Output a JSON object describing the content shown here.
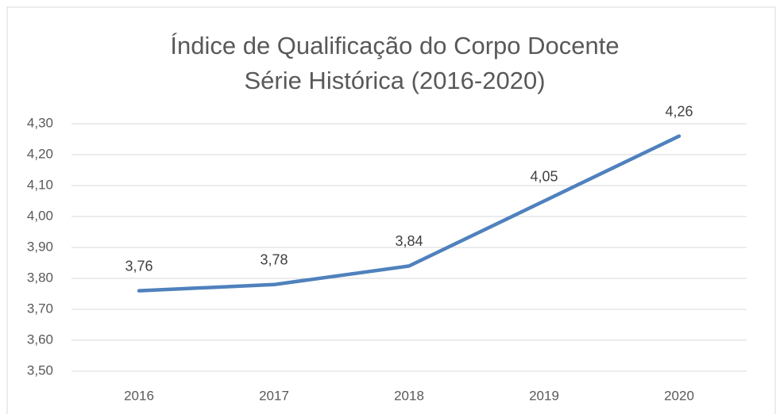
{
  "chart_data": {
    "type": "line",
    "title": "Índice de Qualificação do Corpo Docente",
    "subtitle": "Série Histórica (2016-2020)",
    "categories": [
      "2016",
      "2017",
      "2018",
      "2019",
      "2020"
    ],
    "series": [
      {
        "name": "Índice",
        "color": "#4f81bd",
        "values": [
          3.76,
          3.78,
          3.84,
          4.05,
          4.26
        ],
        "value_labels": [
          "3,76",
          "3,78",
          "3,84",
          "4,05",
          "4,26"
        ]
      }
    ],
    "ylim": [
      3.5,
      4.3
    ],
    "yticks": [
      {
        "value": 3.5,
        "label": "3,50"
      },
      {
        "value": 3.6,
        "label": "3,60"
      },
      {
        "value": 3.7,
        "label": "3,70"
      },
      {
        "value": 3.8,
        "label": "3,80"
      },
      {
        "value": 3.9,
        "label": "3,90"
      },
      {
        "value": 4.0,
        "label": "4,00"
      },
      {
        "value": 4.1,
        "label": "4,10"
      },
      {
        "value": 4.2,
        "label": "4,20"
      },
      {
        "value": 4.3,
        "label": "4,30"
      }
    ],
    "grid": true
  }
}
